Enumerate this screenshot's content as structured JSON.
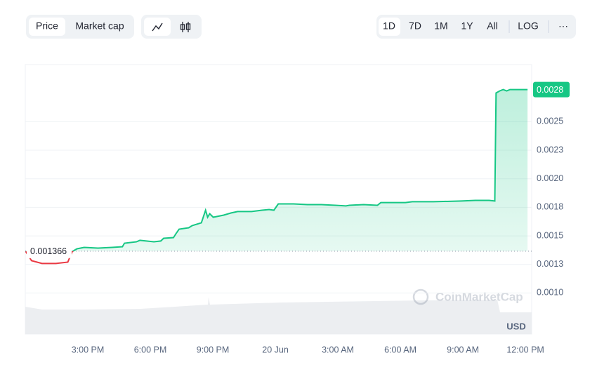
{
  "toolbar": {
    "tabs": [
      "Price",
      "Market cap"
    ],
    "ranges": [
      "1D",
      "7D",
      "1M",
      "1Y",
      "All"
    ],
    "log": "LOG",
    "more": "···"
  },
  "chart_data": {
    "type": "line",
    "x": [
      12,
      12.3,
      12.8,
      13.47,
      14.04,
      14.25,
      14.48,
      14.82,
      15.49,
      16.16,
      16.66,
      16.76,
      17.33,
      17.5,
      18.17,
      18.5,
      18.64,
      19.11,
      19.24,
      19.38,
      19.84,
      20.01,
      20.45,
      20.65,
      20.75,
      20.85,
      21.02,
      21.52,
      21.86,
      22.19,
      22.86,
      23.36,
      23.7,
      23.93,
      24.14,
      24.87,
      25.54,
      26.21,
      26.88,
      27.39,
      27.55,
      28.23,
      28.9,
      29.06,
      29.57,
      30.24,
      30.57,
      31.58,
      32.92,
      33.59,
      34.26,
      34.53,
      34.59,
      34.76,
      34.93,
      35.1,
      35.26,
      36.1
    ],
    "series": [
      {
        "color": "#16c784",
        "below_color": "#ea3943",
        "values": [
          0.001369,
          0.001283,
          0.001258,
          0.001258,
          0.00127,
          0.001362,
          0.001387,
          0.001399,
          0.001393,
          0.001399,
          0.001405,
          0.001436,
          0.001448,
          0.001461,
          0.001448,
          0.001455,
          0.001479,
          0.001485,
          0.001522,
          0.001559,
          0.001571,
          0.00159,
          0.001614,
          0.001725,
          0.001663,
          0.001694,
          0.001663,
          0.001682,
          0.0017,
          0.001713,
          0.001713,
          0.001725,
          0.001731,
          0.001725,
          0.00178,
          0.00178,
          0.001774,
          0.001774,
          0.001768,
          0.001762,
          0.001768,
          0.001774,
          0.001768,
          0.001792,
          0.001792,
          0.001792,
          0.001799,
          0.001799,
          0.001805,
          0.001811,
          0.001811,
          0.001805,
          0.002751,
          0.002769,
          0.002781,
          0.002769,
          0.002781,
          0.002781
        ]
      }
    ],
    "baseline": 0.001366,
    "last_price": {
      "value": 0.002781,
      "label": "0.0028"
    },
    "xlim": [
      12,
      36.3
    ],
    "ylim": [
      0.00064,
      0.003
    ],
    "xticks": [
      {
        "value": 15,
        "label": "3:00 PM"
      },
      {
        "value": 18,
        "label": "6:00 PM"
      },
      {
        "value": 21,
        "label": "9:00 PM"
      },
      {
        "value": 24,
        "label": "20 Jun"
      },
      {
        "value": 27,
        "label": "3:00 AM"
      },
      {
        "value": 30,
        "label": "6:00 AM"
      },
      {
        "value": 33,
        "label": "9:00 AM"
      },
      {
        "value": 36,
        "label": "12:00 PM"
      }
    ],
    "yticks": [
      {
        "value": 0.001,
        "label": "0.0010"
      },
      {
        "value": 0.00125,
        "label": "0.0013"
      },
      {
        "value": 0.0015,
        "label": "0.0015"
      },
      {
        "value": 0.00175,
        "label": "0.0018"
      },
      {
        "value": 0.002,
        "label": "0.0020"
      },
      {
        "value": 0.00225,
        "label": "0.0023"
      },
      {
        "value": 0.0025,
        "label": "0.0025"
      }
    ],
    "grid": true,
    "currency": "USD",
    "watermark": "CoinMarketCap"
  }
}
